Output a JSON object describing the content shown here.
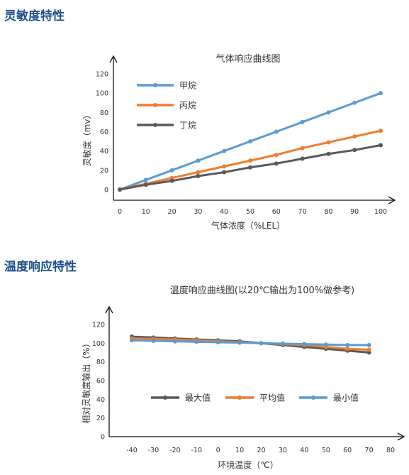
{
  "sections": [
    {
      "title": "灵敏度特性"
    },
    {
      "title": "温度响应特性"
    }
  ],
  "chart_data": [
    {
      "type": "line",
      "title": "气体响应曲线图",
      "xlabel": "气体浓度（%LEL）",
      "ylabel": "灵敏度（mv）",
      "x": [
        0,
        10,
        20,
        30,
        40,
        50,
        60,
        70,
        80,
        90,
        100
      ],
      "xlim": [
        0,
        100
      ],
      "ylim": [
        0,
        120
      ],
      "xticks": [
        0,
        10,
        20,
        30,
        40,
        50,
        60,
        70,
        80,
        90,
        100
      ],
      "yticks": [
        0,
        20,
        40,
        60,
        80,
        100,
        120
      ],
      "grid": false,
      "legend": "top-left",
      "series": [
        {
          "name": "甲烷",
          "color": "#5b9bd5",
          "values": [
            0,
            10,
            20,
            30,
            40,
            50,
            60,
            70,
            80,
            90,
            100
          ]
        },
        {
          "name": "丙烷",
          "color": "#ed7d31",
          "values": [
            0,
            6,
            12,
            18,
            24,
            30,
            36,
            43,
            49,
            55,
            61
          ]
        },
        {
          "name": "丁烷",
          "color": "#595959",
          "values": [
            0,
            5,
            9,
            14,
            18,
            23,
            27,
            32,
            37,
            41,
            46
          ]
        }
      ]
    },
    {
      "type": "line",
      "title": "温度响应曲线图(以20℃输出为100%做参考)",
      "xlabel": "环境温度（℃）",
      "ylabel": "相对灵敏度输出（%）",
      "x": [
        -40,
        -30,
        -20,
        -10,
        0,
        10,
        20,
        30,
        40,
        50,
        60,
        70
      ],
      "xlim": [
        -40,
        80
      ],
      "ylim": [
        0,
        120
      ],
      "xticks": [
        -40,
        -30,
        -20,
        -10,
        0,
        10,
        20,
        30,
        40,
        50,
        60,
        70,
        80
      ],
      "yticks": [
        0,
        20,
        40,
        60,
        80,
        100,
        120
      ],
      "grid": false,
      "legend": "center",
      "series": [
        {
          "name": "最大值",
          "color": "#595959",
          "values": [
            107,
            106,
            105,
            104,
            103,
            102,
            100,
            98,
            96,
            94,
            92,
            90
          ]
        },
        {
          "name": "平均值",
          "color": "#ed7d31",
          "values": [
            105,
            104.5,
            104,
            103,
            102,
            101,
            100,
            99,
            98,
            96,
            94,
            93
          ]
        },
        {
          "name": "最小值",
          "color": "#5b9bd5",
          "values": [
            103,
            102.5,
            102,
            101.5,
            101,
            100.5,
            100,
            99.5,
            99,
            98.5,
            98,
            98
          ]
        }
      ]
    }
  ]
}
